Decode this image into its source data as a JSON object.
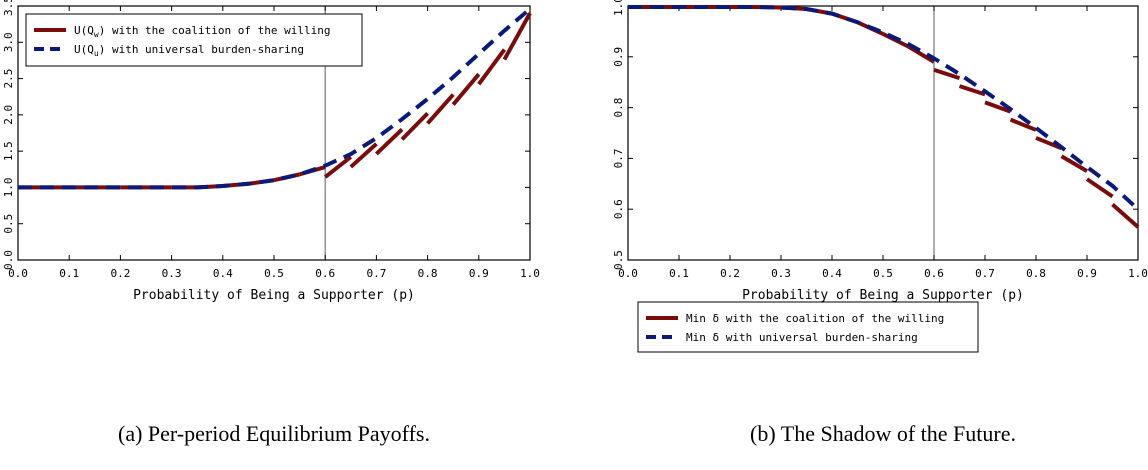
{
  "colors": {
    "willing": "#7a0c0c",
    "universal": "#0a1a7a",
    "axis": "#000000",
    "vline": "#777777"
  },
  "chart_data": [
    {
      "type": "line",
      "caption": "(a)  Per-period Equilibrium Payoffs.",
      "xlabel": "Probability of Being a Supporter (p)",
      "ylabel": "",
      "xlim": [
        0.0,
        1.0
      ],
      "ylim": [
        0.0,
        3.5
      ],
      "xticks": [
        "0.0",
        "0.1",
        "0.2",
        "0.3",
        "0.4",
        "0.5",
        "0.6",
        "0.7",
        "0.8",
        "0.9",
        "1.0"
      ],
      "yticks": [
        "0.0",
        "0.5",
        "1.0",
        "1.5",
        "2.0",
        "2.5",
        "3.0",
        "3.5"
      ],
      "vline_x": 0.6,
      "legend_position": "top-left",
      "grid": false,
      "series": [
        {
          "name_prefix": "U(Q",
          "name_sub": "w",
          "name_suffix": ") with the coalition of the willing",
          "style": "solid-breaking",
          "x": [
            0,
            0.05,
            0.1,
            0.15,
            0.2,
            0.25,
            0.3,
            0.35,
            0.4,
            0.45,
            0.5,
            0.55,
            0.6,
            0.65,
            0.7,
            0.75,
            0.8,
            0.85,
            0.9,
            0.95,
            1.0
          ],
          "y": [
            1.0,
            1.0,
            1.0,
            1.0,
            1.0,
            1.0,
            1.0,
            1.0,
            1.02,
            1.05,
            1.1,
            1.18,
            1.28,
            1.42,
            1.6,
            1.8,
            2.02,
            2.28,
            2.56,
            2.9,
            3.4
          ]
        },
        {
          "name_prefix": "U(Q",
          "name_sub": "u",
          "name_suffix": ") with universal burden-sharing",
          "style": "dashed",
          "x": [
            0,
            0.05,
            0.1,
            0.15,
            0.2,
            0.25,
            0.3,
            0.35,
            0.4,
            0.45,
            0.5,
            0.55,
            0.6,
            0.65,
            0.7,
            0.75,
            0.8,
            0.85,
            0.9,
            0.95,
            1.0
          ],
          "y": [
            1.0,
            1.0,
            1.0,
            1.0,
            1.0,
            1.0,
            1.0,
            1.0,
            1.02,
            1.05,
            1.1,
            1.18,
            1.3,
            1.46,
            1.68,
            1.94,
            2.22,
            2.52,
            2.84,
            3.16,
            3.46
          ]
        }
      ]
    },
    {
      "type": "line",
      "caption": "(b)  The Shadow of the Future.",
      "xlabel": "Probability of Being a Supporter (p)",
      "ylabel": "",
      "xlim": [
        0.0,
        1.0
      ],
      "ylim": [
        0.5,
        1.0
      ],
      "xticks": [
        "0.0",
        "0.1",
        "0.2",
        "0.3",
        "0.4",
        "0.5",
        "0.6",
        "0.7",
        "0.8",
        "0.9",
        "1.0"
      ],
      "yticks": [
        "0.5",
        "0.6",
        "0.7",
        "0.8",
        "0.9",
        "1.0"
      ],
      "vline_x": 0.6,
      "legend_position": "bottom-left",
      "grid": false,
      "series": [
        {
          "name": "Min δ with the coalition of the willing",
          "style": "solid-breaking",
          "x": [
            0,
            0.05,
            0.1,
            0.15,
            0.2,
            0.25,
            0.3,
            0.35,
            0.4,
            0.45,
            0.5,
            0.55,
            0.6,
            0.65,
            0.7,
            0.75,
            0.8,
            0.85,
            0.9,
            0.95,
            1.0
          ],
          "y": [
            0.998,
            0.998,
            0.998,
            0.998,
            0.998,
            0.998,
            0.997,
            0.994,
            0.985,
            0.968,
            0.945,
            0.92,
            0.89,
            0.858,
            0.826,
            0.792,
            0.756,
            0.72,
            0.675,
            0.625,
            0.565
          ]
        },
        {
          "name": "Min δ with universal burden-sharing",
          "style": "dashed",
          "x": [
            0,
            0.05,
            0.1,
            0.15,
            0.2,
            0.25,
            0.3,
            0.35,
            0.4,
            0.45,
            0.5,
            0.55,
            0.6,
            0.65,
            0.7,
            0.75,
            0.8,
            0.85,
            0.9,
            0.95,
            1.0
          ],
          "y": [
            0.998,
            0.998,
            0.998,
            0.998,
            0.998,
            0.998,
            0.997,
            0.994,
            0.985,
            0.968,
            0.948,
            0.925,
            0.897,
            0.866,
            0.832,
            0.797,
            0.76,
            0.722,
            0.683,
            0.646,
            0.6
          ]
        }
      ]
    }
  ]
}
